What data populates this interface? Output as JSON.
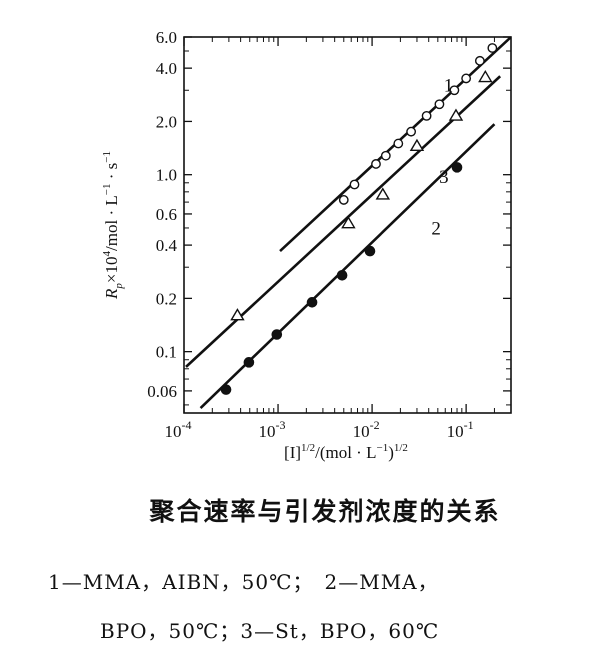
{
  "chart_data": {
    "type": "scatter",
    "x_scale": "log",
    "y_scale": "log",
    "xlim": [
      0.0001,
      0.3
    ],
    "ylim": [
      0.045,
      6.0
    ],
    "x_ticks": [
      {
        "value": 0.0001,
        "base": "10",
        "exp": "-4"
      },
      {
        "value": 0.001,
        "base": "10",
        "exp": "-3"
      },
      {
        "value": 0.01,
        "base": "10",
        "exp": "-2"
      },
      {
        "value": 0.1,
        "base": "10",
        "exp": "-1"
      }
    ],
    "y_ticks": [
      {
        "value": 6.0,
        "label": "6.0"
      },
      {
        "value": 4.0,
        "label": "4.0"
      },
      {
        "value": 2.0,
        "label": "2.0"
      },
      {
        "value": 1.0,
        "label": "1.0"
      },
      {
        "value": 0.6,
        "label": "0.6"
      },
      {
        "value": 0.4,
        "label": "0.4"
      },
      {
        "value": 0.2,
        "label": "0.2"
      },
      {
        "value": 0.1,
        "label": "0.1"
      },
      {
        "value": 0.06,
        "label": "0.06"
      }
    ],
    "xlabel": "[I]1/2/(mol · L−1)1/2",
    "ylabel": "Rp×104/mol · L−1 · s−1",
    "grid": false,
    "series": [
      {
        "name": "1",
        "marker": "open-circle",
        "fit_line": {
          "x": [
            0.00105,
            0.3
          ],
          "y": [
            0.37,
            6.0
          ]
        },
        "label_at": {
          "x": 0.065,
          "y": 2.95
        },
        "points": [
          {
            "x": 0.005,
            "y": 0.72
          },
          {
            "x": 0.0065,
            "y": 0.88
          },
          {
            "x": 0.011,
            "y": 1.15
          },
          {
            "x": 0.014,
            "y": 1.28
          },
          {
            "x": 0.019,
            "y": 1.5
          },
          {
            "x": 0.026,
            "y": 1.75
          },
          {
            "x": 0.038,
            "y": 2.15
          },
          {
            "x": 0.052,
            "y": 2.5
          },
          {
            "x": 0.075,
            "y": 3.0
          },
          {
            "x": 0.1,
            "y": 3.5
          },
          {
            "x": 0.14,
            "y": 4.4
          },
          {
            "x": 0.19,
            "y": 5.2
          }
        ]
      },
      {
        "name": "3",
        "marker": "open-triangle",
        "fit_line": {
          "x": [
            0.000105,
            0.23
          ],
          "y": [
            0.082,
            3.6
          ]
        },
        "label_at": {
          "x": 0.058,
          "y": 0.9
        },
        "points": [
          {
            "x": 0.00037,
            "y": 0.16
          },
          {
            "x": 0.0056,
            "y": 0.53
          },
          {
            "x": 0.013,
            "y": 0.77
          },
          {
            "x": 0.03,
            "y": 1.45
          },
          {
            "x": 0.078,
            "y": 2.15
          },
          {
            "x": 0.16,
            "y": 3.55
          }
        ]
      },
      {
        "name": "2",
        "marker": "filled-circle",
        "fit_line": {
          "x": [
            0.00015,
            0.2
          ],
          "y": [
            0.048,
            1.93
          ]
        },
        "label_at": {
          "x": 0.048,
          "y": 0.46
        },
        "points": [
          {
            "x": 0.00028,
            "y": 0.061
          },
          {
            "x": 0.00049,
            "y": 0.087
          },
          {
            "x": 0.00097,
            "y": 0.125
          },
          {
            "x": 0.0023,
            "y": 0.19
          },
          {
            "x": 0.0048,
            "y": 0.27
          },
          {
            "x": 0.0095,
            "y": 0.37
          },
          {
            "x": 0.08,
            "y": 1.1
          }
        ]
      }
    ]
  },
  "caption": {
    "title": "聚合速率与引发剂浓度的关系",
    "line1": "1—MMA，AIBN，50℃；　2—MMA，",
    "line2": "BPO，50℃；3—St，BPO，60℃"
  }
}
